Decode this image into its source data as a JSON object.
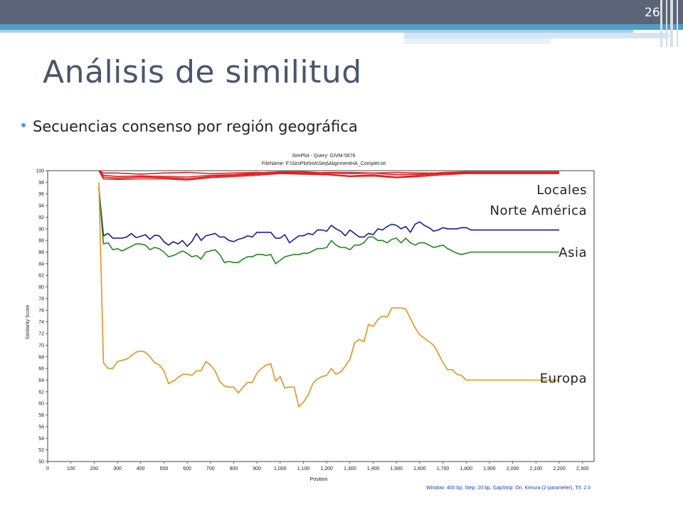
{
  "slide": {
    "number": "26",
    "title": "Análisis de similitud",
    "bullet": "Secuencias consenso por región geográfica"
  },
  "chart_data": {
    "type": "line",
    "title": "SimPlot - Query: GIVM-5676",
    "subtitle": "FileName: F:\\SimPlot\\HA\\Seq\\AlignmentHA_Complet.txt",
    "xlabel": "Position",
    "ylabel": "Similarity Score",
    "xlim": [
      0,
      2350
    ],
    "ylim": [
      50,
      100
    ],
    "x_ticks": [
      0,
      100,
      200,
      300,
      400,
      500,
      600,
      700,
      800,
      900,
      1000,
      1100,
      1200,
      1300,
      1400,
      1500,
      1600,
      1700,
      1800,
      1900,
      2000,
      2100,
      2200,
      2300
    ],
    "x_tick_labels": [
      "0",
      "100",
      "200",
      "300",
      "400",
      "500",
      "600",
      "700",
      "800",
      "900",
      "1,000",
      "1,100",
      "1,200",
      "1,300",
      "1,400",
      "1,500",
      "1,600",
      "1,700",
      "1,800",
      "1,900",
      "2,000",
      "2,100",
      "2,200",
      "2,300"
    ],
    "y_ticks": [
      50,
      52,
      54,
      56,
      58,
      60,
      62,
      64,
      66,
      68,
      70,
      72,
      74,
      76,
      78,
      80,
      82,
      84,
      86,
      88,
      90,
      92,
      94,
      96,
      98,
      100
    ],
    "footer": "Window: 400 bp, Step: 20 bp, GapStrip: On, Kimura (2-parameter), T/t: 2.0",
    "grid": false,
    "colors": {
      "red": "#e02020",
      "blue": "#1a1aa0",
      "green": "#1f8a1f",
      "orange": "#e8921e"
    },
    "series": [
      {
        "color": "red",
        "x": [
          220,
          240,
          300,
          400,
          500,
          600,
          700,
          800,
          900,
          1000,
          1100,
          1200,
          1300,
          1400,
          1500,
          1600,
          1700,
          1800,
          1900,
          2000,
          2200
        ],
        "y": [
          100,
          99.6,
          99.6,
          99.4,
          99.6,
          99.7,
          99.5,
          99.6,
          99.7,
          99.6,
          99.6,
          99.7,
          99.7,
          99.6,
          99.7,
          99.6,
          99.6,
          99.7,
          99.7,
          99.7,
          99.7
        ]
      },
      {
        "color": "red",
        "x": [
          220,
          240,
          300,
          400,
          500,
          600,
          700,
          800,
          900,
          1000,
          1100,
          1200,
          1300,
          1400,
          1500,
          1600,
          1700,
          1800,
          1900,
          2000,
          2200
        ],
        "y": [
          100,
          99.2,
          99.0,
          99.1,
          99.0,
          98.9,
          99.2,
          99.3,
          99.6,
          99.8,
          99.8,
          99.6,
          99.5,
          99.6,
          99.3,
          99.4,
          99.7,
          99.8,
          99.8,
          99.8,
          99.8
        ]
      },
      {
        "color": "red",
        "x": [
          220,
          240,
          300,
          400,
          500,
          600,
          700,
          800,
          900,
          1000,
          1100,
          1200,
          1300,
          1400,
          1500,
          1600,
          1700,
          1800,
          1900,
          2000,
          2200
        ],
        "y": [
          100,
          98.9,
          98.7,
          98.9,
          98.8,
          98.6,
          99.0,
          99.2,
          99.4,
          99.7,
          99.6,
          99.4,
          99.1,
          99.3,
          98.9,
          99.2,
          99.5,
          99.6,
          99.6,
          99.6,
          99.6
        ]
      },
      {
        "color": "red",
        "x": [
          220,
          240,
          300,
          400,
          500,
          600,
          700,
          800,
          900,
          1000,
          1100,
          1200,
          1300,
          1400,
          1500,
          1600,
          1700,
          1800,
          1900,
          2000,
          2200
        ],
        "y": [
          100,
          98.6,
          98.5,
          98.6,
          98.6,
          98.4,
          98.8,
          99.0,
          99.2,
          99.5,
          99.4,
          99.3,
          99.0,
          99.1,
          98.8,
          99.0,
          99.3,
          99.5,
          99.5,
          99.5,
          99.5
        ]
      },
      {
        "color": "blue",
        "x": [
          220,
          240,
          260,
          280,
          300,
          320,
          340,
          360,
          380,
          400,
          420,
          440,
          460,
          480,
          500,
          520,
          540,
          560,
          580,
          600,
          620,
          640,
          660,
          680,
          700,
          720,
          740,
          760,
          780,
          800,
          820,
          840,
          860,
          880,
          900,
          920,
          940,
          960,
          980,
          1000,
          1020,
          1040,
          1060,
          1080,
          1100,
          1120,
          1140,
          1160,
          1180,
          1200,
          1220,
          1240,
          1260,
          1280,
          1300,
          1320,
          1340,
          1360,
          1380,
          1400,
          1420,
          1440,
          1460,
          1480,
          1500,
          1520,
          1540,
          1560,
          1580,
          1600,
          1620,
          1640,
          1660,
          1680,
          1700,
          1720,
          1740,
          1760,
          1780,
          1800,
          1820,
          2200
        ],
        "y": [
          97,
          88.8,
          89.2,
          88.4,
          88.4,
          88.4,
          88.6,
          89.2,
          88.5,
          88.7,
          89.0,
          88.2,
          88.9,
          88.8,
          87.8,
          87.2,
          87.8,
          87.4,
          88.0,
          87.0,
          87.8,
          89.2,
          88.0,
          88.8,
          89.0,
          89.2,
          88.6,
          88.6,
          88.0,
          87.8,
          88.2,
          88.4,
          88.8,
          88.6,
          89.4,
          89.4,
          89.4,
          89.4,
          88.4,
          88.4,
          89.0,
          87.6,
          88.2,
          88.8,
          88.8,
          89.2,
          89.0,
          89.8,
          89.8,
          89.6,
          90.6,
          90.0,
          89.6,
          88.8,
          89.8,
          89.2,
          88.6,
          88.6,
          89.2,
          89.0,
          90.0,
          89.8,
          90.4,
          90.8,
          90.6,
          90.0,
          90.4,
          89.4,
          90.8,
          91.2,
          90.6,
          90.2,
          89.6,
          89.8,
          90.2,
          90.0,
          90.0,
          90.0,
          90.2,
          90.2,
          89.8,
          89.8
        ]
      },
      {
        "color": "green",
        "x": [
          220,
          240,
          260,
          280,
          300,
          320,
          340,
          360,
          380,
          400,
          420,
          440,
          460,
          480,
          500,
          520,
          540,
          560,
          580,
          600,
          620,
          640,
          660,
          680,
          700,
          720,
          740,
          760,
          780,
          800,
          820,
          840,
          860,
          880,
          900,
          920,
          940,
          960,
          980,
          1000,
          1020,
          1040,
          1060,
          1080,
          1100,
          1120,
          1140,
          1160,
          1180,
          1200,
          1220,
          1240,
          1260,
          1280,
          1300,
          1320,
          1340,
          1360,
          1380,
          1400,
          1420,
          1440,
          1460,
          1480,
          1500,
          1520,
          1540,
          1560,
          1580,
          1600,
          1620,
          1640,
          1660,
          1680,
          1700,
          1720,
          1740,
          1760,
          1780,
          1800,
          1820,
          2200
        ],
        "y": [
          97,
          87.4,
          87.6,
          86.4,
          86.6,
          86.2,
          86.6,
          87.0,
          87.4,
          87.4,
          87.2,
          86.4,
          86.8,
          86.6,
          86.0,
          85.2,
          85.4,
          85.8,
          86.2,
          85.8,
          85.2,
          85.4,
          84.8,
          86.0,
          86.2,
          86.4,
          85.6,
          84.2,
          84.4,
          84.2,
          84.2,
          84.8,
          85.2,
          85.2,
          85.6,
          85.6,
          85.4,
          85.6,
          84.0,
          84.6,
          85.2,
          85.4,
          85.6,
          85.6,
          85.8,
          85.8,
          86.2,
          86.6,
          86.6,
          86.8,
          88.0,
          87.2,
          86.8,
          86.8,
          86.4,
          87.2,
          87.2,
          87.6,
          88.6,
          88.6,
          88.0,
          88.0,
          87.6,
          88.2,
          88.4,
          87.6,
          88.4,
          87.6,
          87.2,
          87.6,
          87.6,
          87.2,
          86.8,
          87.0,
          87.2,
          86.6,
          86.2,
          85.8,
          85.6,
          85.8,
          86.0,
          86.0
        ]
      },
      {
        "color": "orange",
        "x": [
          220,
          240,
          260,
          280,
          300,
          320,
          340,
          360,
          380,
          400,
          420,
          440,
          460,
          480,
          500,
          520,
          540,
          560,
          580,
          600,
          620,
          640,
          660,
          680,
          700,
          720,
          740,
          760,
          780,
          800,
          820,
          840,
          860,
          880,
          900,
          920,
          940,
          960,
          980,
          1000,
          1020,
          1040,
          1060,
          1080,
          1100,
          1120,
          1140,
          1160,
          1180,
          1200,
          1220,
          1240,
          1260,
          1280,
          1300,
          1320,
          1340,
          1360,
          1380,
          1400,
          1420,
          1440,
          1460,
          1480,
          1500,
          1520,
          1540,
          1560,
          1580,
          1600,
          1620,
          1640,
          1660,
          1680,
          1700,
          1720,
          1740,
          1760,
          1780,
          1800,
          1820,
          2200
        ],
        "y": [
          98,
          67.0,
          66.0,
          66.0,
          67.2,
          67.4,
          67.6,
          68.2,
          68.8,
          69.0,
          68.8,
          68.0,
          67.0,
          66.6,
          65.6,
          63.4,
          63.8,
          64.4,
          65.0,
          65.0,
          64.8,
          65.6,
          65.6,
          67.2,
          66.6,
          65.6,
          63.8,
          63.0,
          62.8,
          62.8,
          61.8,
          62.8,
          63.6,
          63.6,
          65.2,
          66.0,
          66.6,
          66.8,
          63.8,
          64.6,
          62.6,
          62.8,
          62.8,
          59.4,
          60.2,
          61.4,
          63.4,
          64.2,
          64.6,
          64.8,
          66.0,
          65.0,
          65.4,
          66.4,
          67.6,
          70.4,
          71.0,
          70.6,
          73.6,
          73.2,
          74.4,
          75.0,
          74.8,
          76.4,
          76.4,
          76.4,
          76.2,
          74.6,
          73.0,
          71.8,
          71.2,
          70.6,
          70.0,
          68.6,
          67.0,
          65.8,
          65.8,
          65.0,
          64.8,
          64.0,
          64.0,
          64.0
        ]
      }
    ]
  },
  "annotations": [
    {
      "label": "Locales",
      "y": 99.4
    },
    {
      "label": "Norte América",
      "y": 89.8
    },
    {
      "label": "Asia",
      "y": 86.0
    },
    {
      "label": "Europa",
      "y": 64.0
    }
  ]
}
